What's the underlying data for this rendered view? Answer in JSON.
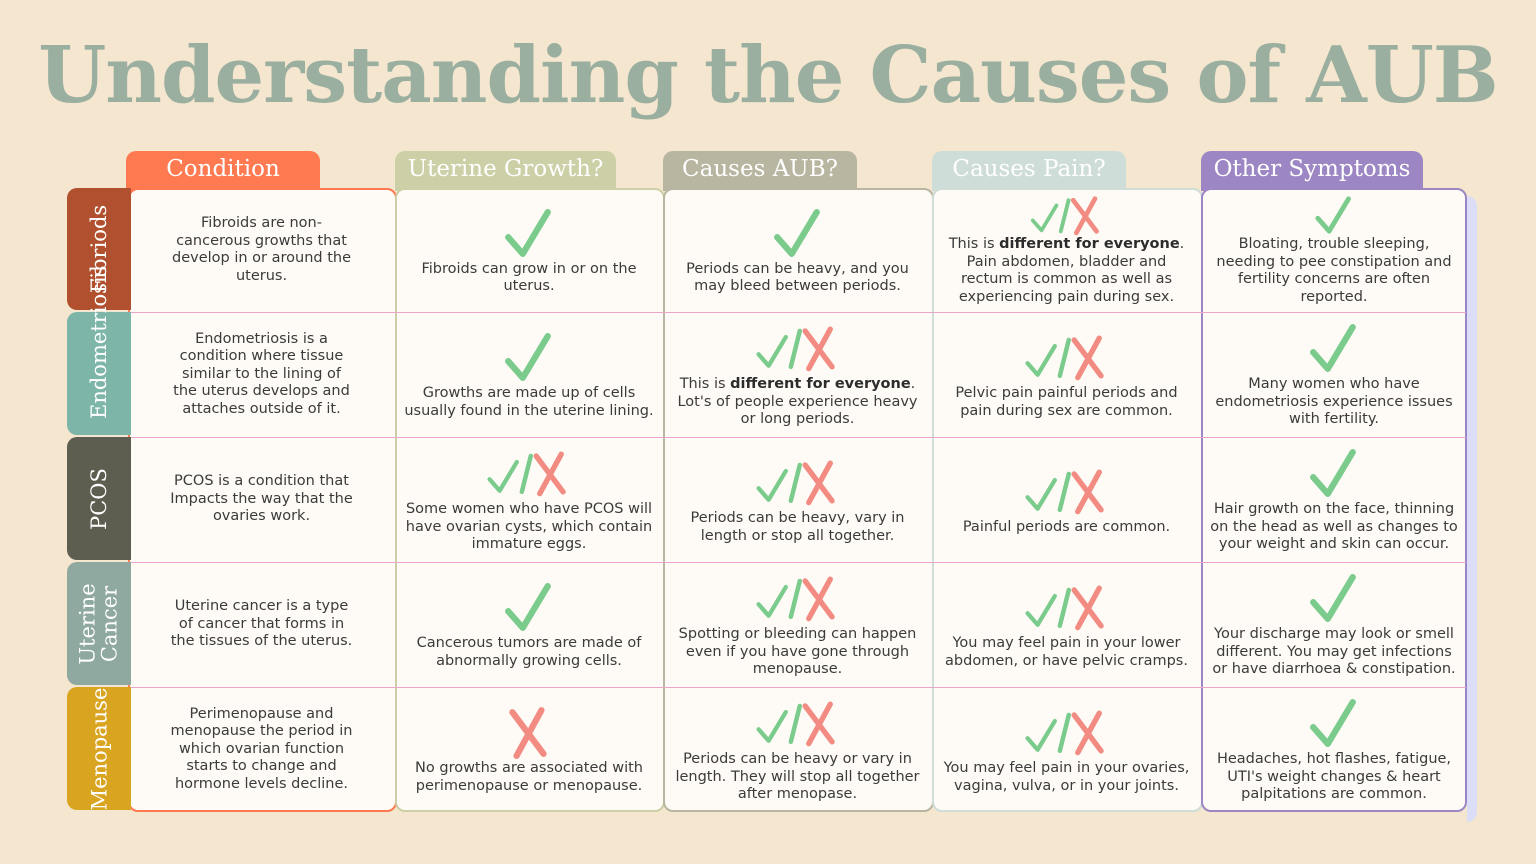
{
  "title": "Understanding the Causes of AUB",
  "colors": {
    "check": "#7ACB8C",
    "cross": "#F28B82"
  },
  "columns": [
    {
      "label": "Condition",
      "color": "#FF7A50"
    },
    {
      "label": "Uterine Growth?",
      "color": "#CDD0A6"
    },
    {
      "label": "Causes AUB?",
      "color": "#B8B5A0"
    },
    {
      "label": "Causes Pain?",
      "color": "#CFDDD9"
    },
    {
      "label": "Other Symptoms",
      "color": "#9C86C4"
    }
  ],
  "rows": [
    {
      "label": "Fibriods",
      "color": "#B0502E",
      "cells": [
        {
          "mark": "none",
          "pre": "Fibroids are non-cancerous growths that develop in or around the uterus."
        },
        {
          "mark": "check",
          "pre": "Fibroids can grow in or on the uterus."
        },
        {
          "mark": "check",
          "pre": "Periods can be heavy, and you may bleed between periods."
        },
        {
          "mark": "mixed",
          "pre": "This is ",
          "bold": "different for everyone",
          "post": ". Pain abdomen, bladder and rectum is common as well as experiencing pain during sex."
        },
        {
          "mark": "check",
          "pre": "Bloating, trouble sleeping, needing to pee constipation and fertility concerns are often reported."
        }
      ]
    },
    {
      "label": "Endometriosis",
      "color": "#7DB5A9",
      "cells": [
        {
          "mark": "none",
          "pre": "Endometriosis is a condition where tissue similar to the lining of the uterus develops and attaches outside of it."
        },
        {
          "mark": "check",
          "pre": "Growths are made up of cells usually found in the uterine lining."
        },
        {
          "mark": "mixed",
          "pre": "This is ",
          "bold": "different for everyone",
          "post": ". Lot's of people experience heavy or long periods."
        },
        {
          "mark": "mixed",
          "pre": "Pelvic pain painful periods and pain during sex are common."
        },
        {
          "mark": "check",
          "pre": "Many  women who have endometriosis experience issues with fertility."
        }
      ]
    },
    {
      "label": "PCOS",
      "color": "#5E5E50",
      "cells": [
        {
          "mark": "none",
          "pre": "PCOS is a condition that Impacts the way that the ovaries work."
        },
        {
          "mark": "mixed",
          "pre": "Some women who have PCOS will have ovarian cysts, which contain immature eggs."
        },
        {
          "mark": "mixed",
          "pre": "Periods can be heavy, vary in length or stop all together."
        },
        {
          "mark": "mixed",
          "pre": "Painful periods are common."
        },
        {
          "mark": "check",
          "pre": "Hair growth on the face, thinning on the head as well as changes to your weight and skin can occur."
        }
      ]
    },
    {
      "label": "Uterine Cancer",
      "color": "#8FA8A0",
      "cells": [
        {
          "mark": "none",
          "pre": "Uterine cancer is a type of cancer that forms in the tissues of the uterus."
        },
        {
          "mark": "check",
          "pre": "Cancerous tumors are made of abnormally growing cells."
        },
        {
          "mark": "mixed",
          "pre": "Spotting or bleeding can happen even if you have gone through menopause."
        },
        {
          "mark": "mixed",
          "pre": "You may feel pain in your lower abdomen, or have pelvic cramps."
        },
        {
          "mark": "check",
          "pre": "Your discharge may look or smell different. You may get infections or have diarrhoea & constipation."
        }
      ]
    },
    {
      "label": "Menopause",
      "color": "#D9A420",
      "cells": [
        {
          "mark": "none",
          "pre": "Perimenopause and menopause the period in which ovarian function starts to change and hormone levels decline."
        },
        {
          "mark": "cross",
          "pre": "No growths are associated with perimenopause or menopause."
        },
        {
          "mark": "mixed",
          "pre": "Periods can be heavy or vary in length. They will stop all together after menopase."
        },
        {
          "mark": "mixed",
          "pre": "You may feel pain in your ovaries, vagina, vulva, or in your joints."
        },
        {
          "mark": "check",
          "pre": "Headaches, hot flashes, fatigue, UTI's weight changes & heart palpitations are common."
        }
      ]
    }
  ]
}
